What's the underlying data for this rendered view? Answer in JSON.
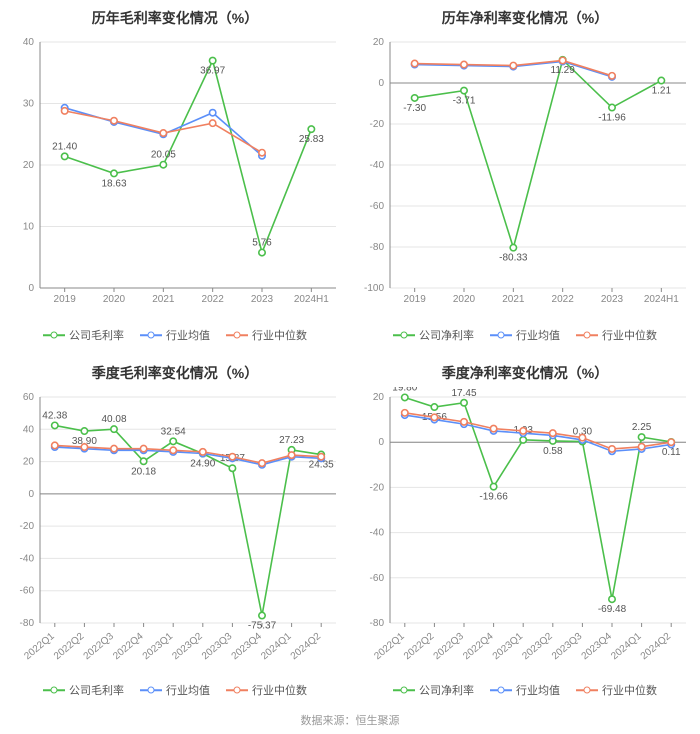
{
  "footer": "数据来源：恒生聚源",
  "colors": {
    "company": "#4bbf4b",
    "industry_mean": "#5b8ff9",
    "industry_median": "#f08060",
    "axis": "#888888",
    "grid": "#e5e5e5",
    "bg": "#ffffff",
    "text": "#555555",
    "title": "#333333"
  },
  "legend_labels": {
    "gross_company": "公司毛利率",
    "net_company": "公司净利率",
    "mean": "行业均值",
    "median": "行业中位数"
  },
  "fontsize": {
    "title": 14,
    "axis": 10,
    "legend": 11,
    "data_label": 10,
    "footer": 11
  },
  "panels": [
    {
      "id": "annual_gross",
      "title": "历年毛利率变化情况（%）",
      "type": "line",
      "x_categories": [
        "2019",
        "2020",
        "2021",
        "2022",
        "2023",
        "2024H1"
      ],
      "x_rotate": 0,
      "ylim": [
        0,
        40
      ],
      "ytick_step": 10,
      "series": [
        {
          "key": "company",
          "legend_key": "gross_company",
          "values": [
            21.4,
            18.63,
            20.05,
            36.97,
            5.76,
            25.83
          ],
          "labels": [
            21.4,
            18.63,
            20.05,
            36.97,
            5.76,
            25.83
          ]
        },
        {
          "key": "industry_mean",
          "legend_key": "mean",
          "values": [
            29.3,
            27.0,
            25.0,
            28.5,
            21.5,
            null
          ],
          "labels": []
        },
        {
          "key": "industry_median",
          "legend_key": "median",
          "values": [
            28.8,
            27.2,
            25.2,
            26.8,
            22.0,
            null
          ],
          "labels": []
        }
      ]
    },
    {
      "id": "annual_net",
      "title": "历年净利率变化情况（%）",
      "type": "line",
      "x_categories": [
        "2019",
        "2020",
        "2021",
        "2022",
        "2023",
        "2024H1"
      ],
      "x_rotate": 0,
      "ylim": [
        -100,
        20
      ],
      "ytick_step": 20,
      "series": [
        {
          "key": "company",
          "legend_key": "net_company",
          "values": [
            -7.3,
            -3.71,
            -80.33,
            11.29,
            -11.96,
            1.21
          ],
          "labels": [
            -7.3,
            -3.71,
            -80.33,
            11.29,
            -11.96,
            1.21
          ]
        },
        {
          "key": "industry_mean",
          "legend_key": "mean",
          "values": [
            9.0,
            8.5,
            8.0,
            10.5,
            3.0,
            null
          ],
          "labels": []
        },
        {
          "key": "industry_median",
          "legend_key": "median",
          "values": [
            9.5,
            9.0,
            8.5,
            11.0,
            3.5,
            null
          ],
          "labels": []
        }
      ]
    },
    {
      "id": "quarterly_gross",
      "title": "季度毛利率变化情况（%）",
      "type": "line",
      "x_categories": [
        "2022Q1",
        "2022Q2",
        "2022Q3",
        "2022Q4",
        "2023Q1",
        "2023Q2",
        "2023Q3",
        "2023Q4",
        "2024Q1",
        "2024Q2"
      ],
      "x_rotate": -40,
      "ylim": [
        -80,
        60
      ],
      "ytick_step": 20,
      "series": [
        {
          "key": "company",
          "legend_key": "gross_company",
          "values": [
            42.38,
            38.9,
            40.08,
            20.18,
            32.54,
            24.9,
            15.87,
            -75.37,
            27.23,
            24.35
          ],
          "labels": [
            42.38,
            38.9,
            40.08,
            20.18,
            32.54,
            24.9,
            15.87,
            -75.37,
            27.23,
            24.35
          ]
        },
        {
          "key": "industry_mean",
          "legend_key": "mean",
          "values": [
            29,
            28,
            27,
            27,
            26,
            25,
            22,
            18,
            23,
            22
          ],
          "labels": []
        },
        {
          "key": "industry_median",
          "legend_key": "median",
          "values": [
            30,
            29,
            28,
            28,
            27,
            26,
            23,
            19,
            24,
            23
          ],
          "labels": []
        }
      ]
    },
    {
      "id": "quarterly_net",
      "title": "季度净利率变化情况（%）",
      "type": "line",
      "x_categories": [
        "2022Q1",
        "2022Q2",
        "2022Q3",
        "2022Q4",
        "2023Q1",
        "2023Q2",
        "2023Q3",
        "2023Q4",
        "2024Q1",
        "2024Q2"
      ],
      "x_rotate": -40,
      "ylim": [
        -80,
        20
      ],
      "ytick_step": 20,
      "series": [
        {
          "key": "company",
          "legend_key": "net_company",
          "values": [
            19.8,
            15.56,
            17.45,
            -19.66,
            1.03,
            0.58,
            0.3,
            -69.48,
            2.25,
            0.11
          ],
          "labels": [
            19.8,
            15.56,
            17.45,
            -19.66,
            1.03,
            0.58,
            0.3,
            -69.48,
            2.25,
            0.11
          ]
        },
        {
          "key": "industry_mean",
          "legend_key": "mean",
          "values": [
            12,
            10,
            8,
            5,
            4,
            3,
            1,
            -4,
            -3,
            -1
          ],
          "labels": []
        },
        {
          "key": "industry_median",
          "legend_key": "median",
          "values": [
            13,
            11,
            9,
            6,
            5,
            4,
            2,
            -3,
            -2,
            0
          ],
          "labels": []
        }
      ]
    }
  ]
}
